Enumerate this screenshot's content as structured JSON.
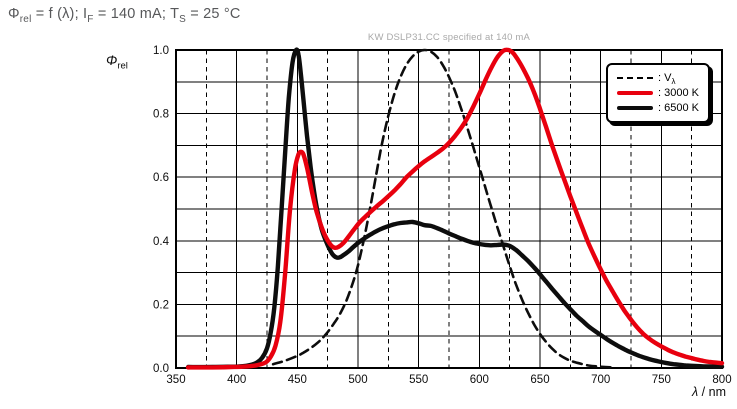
{
  "header": {
    "title_phi": "Φ",
    "title_phi_sub": "rel",
    "title_part1": " = f (λ); I",
    "title_if_sub": "F",
    "title_part2": " = 140 mA; T",
    "title_ts_sub": "S",
    "title_part3": " = 25 °C"
  },
  "watermark": "KW DSLP31.CC specified at 140 mA",
  "axes": {
    "y_title_phi": "Φ",
    "y_title_sub": "rel",
    "x_title_lambda": "λ",
    "x_title_rest": " / nm",
    "y_tick_labels": [
      "0.0",
      "0.2",
      "0.4",
      "0.6",
      "0.8",
      "1.0"
    ],
    "x_tick_labels": [
      "350",
      "400",
      "450",
      "500",
      "550",
      "600",
      "650",
      "700",
      "750",
      "800"
    ]
  },
  "legend": {
    "items": [
      {
        "label": ": V",
        "sub": "λ"
      },
      {
        "label": ": 3000 K",
        "sub": ""
      },
      {
        "label": ": 6500 K",
        "sub": ""
      }
    ]
  },
  "colors": {
    "red_curve": "#e8000e",
    "black_curve": "#0d0d0d",
    "grid": "#000000",
    "title_text": "#57585a",
    "watermark_text": "#a9a9a9"
  },
  "chart_data": {
    "type": "line",
    "title": "Φrel = f (λ); IF = 140 mA; TS = 25 °C",
    "subtitle": "KW DSLP31.CC specified at 140 mA",
    "xlabel": "λ / nm",
    "ylabel": "Φrel",
    "xlim": [
      350,
      800
    ],
    "ylim": [
      0.0,
      1.0
    ],
    "x_major_step": 50,
    "x_minor_step": 25,
    "y_grid_step": 0.1,
    "y_label_step": 0.2,
    "grid": "solid majors + y 0.1 lines, dashed x minors",
    "legend_position": "top-right inset box",
    "series": [
      {
        "name": "Vλ",
        "legend_label": ": Vλ",
        "style": "dashed",
        "color": "#0d0d0d",
        "width": 2.6,
        "points": [
          [
            430,
            0.012
          ],
          [
            440,
            0.023
          ],
          [
            450,
            0.038
          ],
          [
            455,
            0.048
          ],
          [
            460,
            0.06
          ],
          [
            465,
            0.074
          ],
          [
            470,
            0.091
          ],
          [
            475,
            0.113
          ],
          [
            480,
            0.139
          ],
          [
            485,
            0.169
          ],
          [
            490,
            0.208
          ],
          [
            495,
            0.259
          ],
          [
            500,
            0.323
          ],
          [
            505,
            0.407
          ],
          [
            510,
            0.503
          ],
          [
            515,
            0.608
          ],
          [
            520,
            0.71
          ],
          [
            525,
            0.793
          ],
          [
            530,
            0.862
          ],
          [
            535,
            0.915
          ],
          [
            540,
            0.954
          ],
          [
            545,
            0.98
          ],
          [
            550,
            0.995
          ],
          [
            555,
            1.0
          ],
          [
            560,
            0.995
          ],
          [
            565,
            0.979
          ],
          [
            570,
            0.952
          ],
          [
            575,
            0.915
          ],
          [
            580,
            0.87
          ],
          [
            585,
            0.816
          ],
          [
            590,
            0.757
          ],
          [
            595,
            0.695
          ],
          [
            600,
            0.631
          ],
          [
            605,
            0.567
          ],
          [
            610,
            0.503
          ],
          [
            615,
            0.441
          ],
          [
            620,
            0.381
          ],
          [
            625,
            0.321
          ],
          [
            630,
            0.265
          ],
          [
            635,
            0.217
          ],
          [
            640,
            0.175
          ],
          [
            645,
            0.138
          ],
          [
            650,
            0.107
          ],
          [
            655,
            0.082
          ],
          [
            660,
            0.061
          ],
          [
            665,
            0.044
          ],
          [
            670,
            0.032
          ],
          [
            675,
            0.023
          ],
          [
            680,
            0.017
          ],
          [
            690,
            0.008
          ],
          [
            700,
            0.004
          ],
          [
            710,
            0.002
          ]
        ]
      },
      {
        "name": "3000 K",
        "legend_label": ": 3000 K",
        "style": "solid",
        "color": "#e8000e",
        "width": 4.4,
        "points": [
          [
            360,
            0.002
          ],
          [
            380,
            0.002
          ],
          [
            395,
            0.003
          ],
          [
            405,
            0.004
          ],
          [
            412,
            0.006
          ],
          [
            418,
            0.01
          ],
          [
            424,
            0.018
          ],
          [
            428,
            0.035
          ],
          [
            432,
            0.07
          ],
          [
            436,
            0.145
          ],
          [
            440,
            0.3
          ],
          [
            444,
            0.5
          ],
          [
            448,
            0.625
          ],
          [
            451,
            0.672
          ],
          [
            453,
            0.68
          ],
          [
            455,
            0.672
          ],
          [
            458,
            0.63
          ],
          [
            462,
            0.555
          ],
          [
            466,
            0.49
          ],
          [
            470,
            0.443
          ],
          [
            474,
            0.408
          ],
          [
            478,
            0.385
          ],
          [
            481,
            0.378
          ],
          [
            484,
            0.381
          ],
          [
            488,
            0.393
          ],
          [
            492,
            0.412
          ],
          [
            496,
            0.432
          ],
          [
            500,
            0.452
          ],
          [
            505,
            0.472
          ],
          [
            510,
            0.49
          ],
          [
            515,
            0.507
          ],
          [
            520,
            0.523
          ],
          [
            525,
            0.54
          ],
          [
            530,
            0.558
          ],
          [
            535,
            0.578
          ],
          [
            540,
            0.6
          ],
          [
            545,
            0.618
          ],
          [
            550,
            0.635
          ],
          [
            555,
            0.65
          ],
          [
            560,
            0.663
          ],
          [
            565,
            0.676
          ],
          [
            570,
            0.69
          ],
          [
            575,
            0.708
          ],
          [
            580,
            0.73
          ],
          [
            585,
            0.755
          ],
          [
            590,
            0.785
          ],
          [
            595,
            0.822
          ],
          [
            600,
            0.862
          ],
          [
            605,
            0.905
          ],
          [
            610,
            0.945
          ],
          [
            615,
            0.978
          ],
          [
            620,
            0.998
          ],
          [
            624,
            1.0
          ],
          [
            628,
            0.99
          ],
          [
            632,
            0.968
          ],
          [
            636,
            0.942
          ],
          [
            640,
            0.912
          ],
          [
            645,
            0.868
          ],
          [
            650,
            0.815
          ],
          [
            655,
            0.758
          ],
          [
            660,
            0.7
          ],
          [
            665,
            0.645
          ],
          [
            670,
            0.592
          ],
          [
            675,
            0.54
          ],
          [
            680,
            0.49
          ],
          [
            685,
            0.44
          ],
          [
            690,
            0.392
          ],
          [
            695,
            0.35
          ],
          [
            700,
            0.31
          ],
          [
            705,
            0.273
          ],
          [
            710,
            0.24
          ],
          [
            715,
            0.208
          ],
          [
            720,
            0.178
          ],
          [
            725,
            0.152
          ],
          [
            730,
            0.128
          ],
          [
            735,
            0.108
          ],
          [
            740,
            0.092
          ],
          [
            745,
            0.079
          ],
          [
            750,
            0.068
          ],
          [
            755,
            0.058
          ],
          [
            760,
            0.049
          ],
          [
            765,
            0.042
          ],
          [
            770,
            0.036
          ],
          [
            775,
            0.031
          ],
          [
            780,
            0.026
          ],
          [
            785,
            0.022
          ],
          [
            790,
            0.019
          ],
          [
            795,
            0.017
          ],
          [
            800,
            0.015
          ]
        ]
      },
      {
        "name": "6500 K",
        "legend_label": ": 6500 K",
        "style": "solid",
        "color": "#0d0d0d",
        "width": 4.4,
        "points": [
          [
            360,
            0.003
          ],
          [
            380,
            0.003
          ],
          [
            395,
            0.004
          ],
          [
            402,
            0.005
          ],
          [
            408,
            0.007
          ],
          [
            413,
            0.011
          ],
          [
            417,
            0.018
          ],
          [
            421,
            0.032
          ],
          [
            425,
            0.062
          ],
          [
            428,
            0.11
          ],
          [
            431,
            0.19
          ],
          [
            434,
            0.32
          ],
          [
            437,
            0.5
          ],
          [
            440,
            0.68
          ],
          [
            443,
            0.85
          ],
          [
            446,
            0.96
          ],
          [
            449,
            1.0
          ],
          [
            451,
            0.985
          ],
          [
            453,
            0.92
          ],
          [
            455,
            0.845
          ],
          [
            458,
            0.73
          ],
          [
            461,
            0.63
          ],
          [
            464,
            0.55
          ],
          [
            467,
            0.485
          ],
          [
            470,
            0.437
          ],
          [
            473,
            0.405
          ],
          [
            476,
            0.378
          ],
          [
            479,
            0.358
          ],
          [
            482,
            0.348
          ],
          [
            485,
            0.348
          ],
          [
            488,
            0.355
          ],
          [
            492,
            0.366
          ],
          [
            496,
            0.38
          ],
          [
            500,
            0.393
          ],
          [
            505,
            0.407
          ],
          [
            510,
            0.419
          ],
          [
            515,
            0.43
          ],
          [
            520,
            0.439
          ],
          [
            525,
            0.446
          ],
          [
            530,
            0.452
          ],
          [
            535,
            0.456
          ],
          [
            540,
            0.458
          ],
          [
            545,
            0.459
          ],
          [
            550,
            0.455
          ],
          [
            555,
            0.449
          ],
          [
            560,
            0.447
          ],
          [
            565,
            0.44
          ],
          [
            570,
            0.432
          ],
          [
            575,
            0.423
          ],
          [
            580,
            0.415
          ],
          [
            585,
            0.407
          ],
          [
            590,
            0.4
          ],
          [
            595,
            0.394
          ],
          [
            600,
            0.39
          ],
          [
            605,
            0.387
          ],
          [
            610,
            0.386
          ],
          [
            615,
            0.387
          ],
          [
            620,
            0.388
          ],
          [
            625,
            0.384
          ],
          [
            630,
            0.372
          ],
          [
            635,
            0.355
          ],
          [
            640,
            0.337
          ],
          [
            645,
            0.317
          ],
          [
            650,
            0.295
          ],
          [
            655,
            0.272
          ],
          [
            660,
            0.249
          ],
          [
            665,
            0.227
          ],
          [
            670,
            0.205
          ],
          [
            675,
            0.185
          ],
          [
            680,
            0.165
          ],
          [
            685,
            0.148
          ],
          [
            690,
            0.131
          ],
          [
            695,
            0.117
          ],
          [
            700,
            0.104
          ],
          [
            705,
            0.091
          ],
          [
            710,
            0.079
          ],
          [
            715,
            0.068
          ],
          [
            720,
            0.058
          ],
          [
            725,
            0.049
          ],
          [
            730,
            0.041
          ],
          [
            735,
            0.034
          ],
          [
            740,
            0.028
          ],
          [
            745,
            0.023
          ],
          [
            750,
            0.019
          ],
          [
            755,
            0.015
          ],
          [
            760,
            0.012
          ],
          [
            765,
            0.01
          ],
          [
            770,
            0.008
          ],
          [
            775,
            0.007
          ],
          [
            780,
            0.006
          ],
          [
            785,
            0.005
          ],
          [
            790,
            0.005
          ],
          [
            795,
            0.004
          ],
          [
            800,
            0.004
          ]
        ]
      }
    ]
  }
}
